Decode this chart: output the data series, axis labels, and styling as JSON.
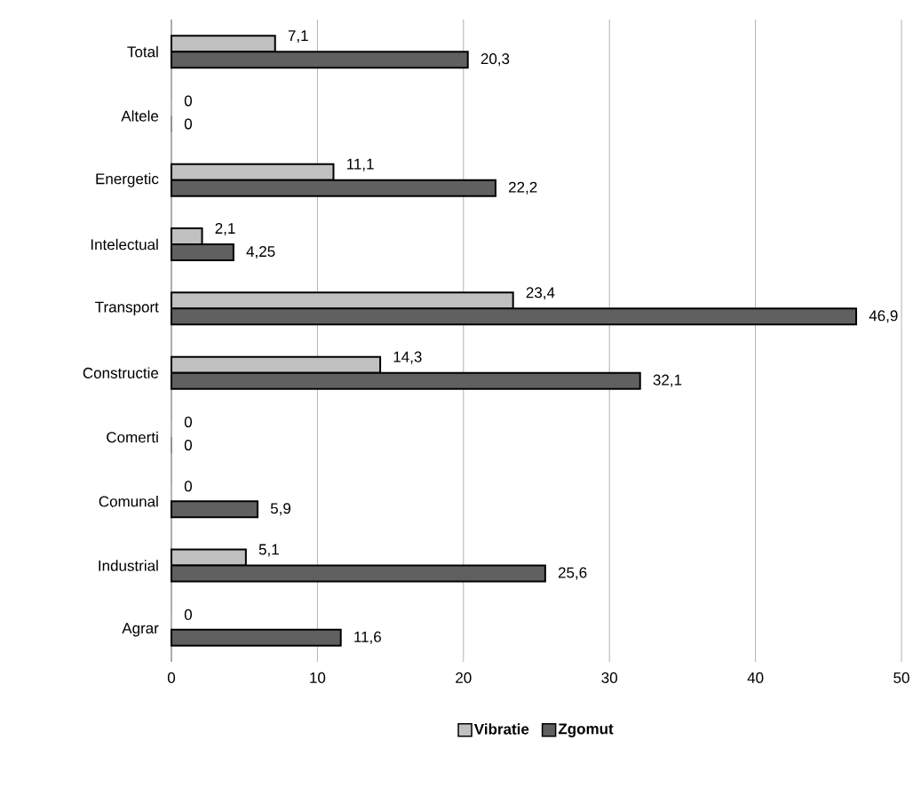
{
  "chart_data": {
    "type": "bar",
    "orientation": "horizontal",
    "categories": [
      "Total",
      "Altele",
      "Energetic",
      "Intelectual",
      "Transport",
      "Constructie",
      "Comerti",
      "Comunal",
      "Industrial",
      "Agrar"
    ],
    "series": [
      {
        "name": "Vibratie",
        "color": "#c0c0c0",
        "values": [
          7.1,
          0,
          11.1,
          2.1,
          23.4,
          14.3,
          0,
          0,
          5.1,
          0
        ],
        "value_labels": [
          "7,1",
          "0",
          "11,1",
          "2,1",
          "23,4",
          "14,3",
          "0",
          "0",
          "5,1",
          "0"
        ]
      },
      {
        "name": "Zgomut",
        "color": "#606060",
        "values": [
          20.3,
          0,
          22.2,
          4.25,
          46.9,
          32.1,
          0,
          5.9,
          25.6,
          11.6
        ],
        "value_labels": [
          "20,3",
          "0",
          "22,2",
          "4,25",
          "46,9",
          "32,1",
          "0",
          "5,9",
          "25,6",
          "11,6"
        ]
      }
    ],
    "xlim": [
      0,
      50
    ],
    "xticks": [
      0,
      10,
      20,
      30,
      40,
      50
    ],
    "grid": "x",
    "legend": "bottom"
  }
}
